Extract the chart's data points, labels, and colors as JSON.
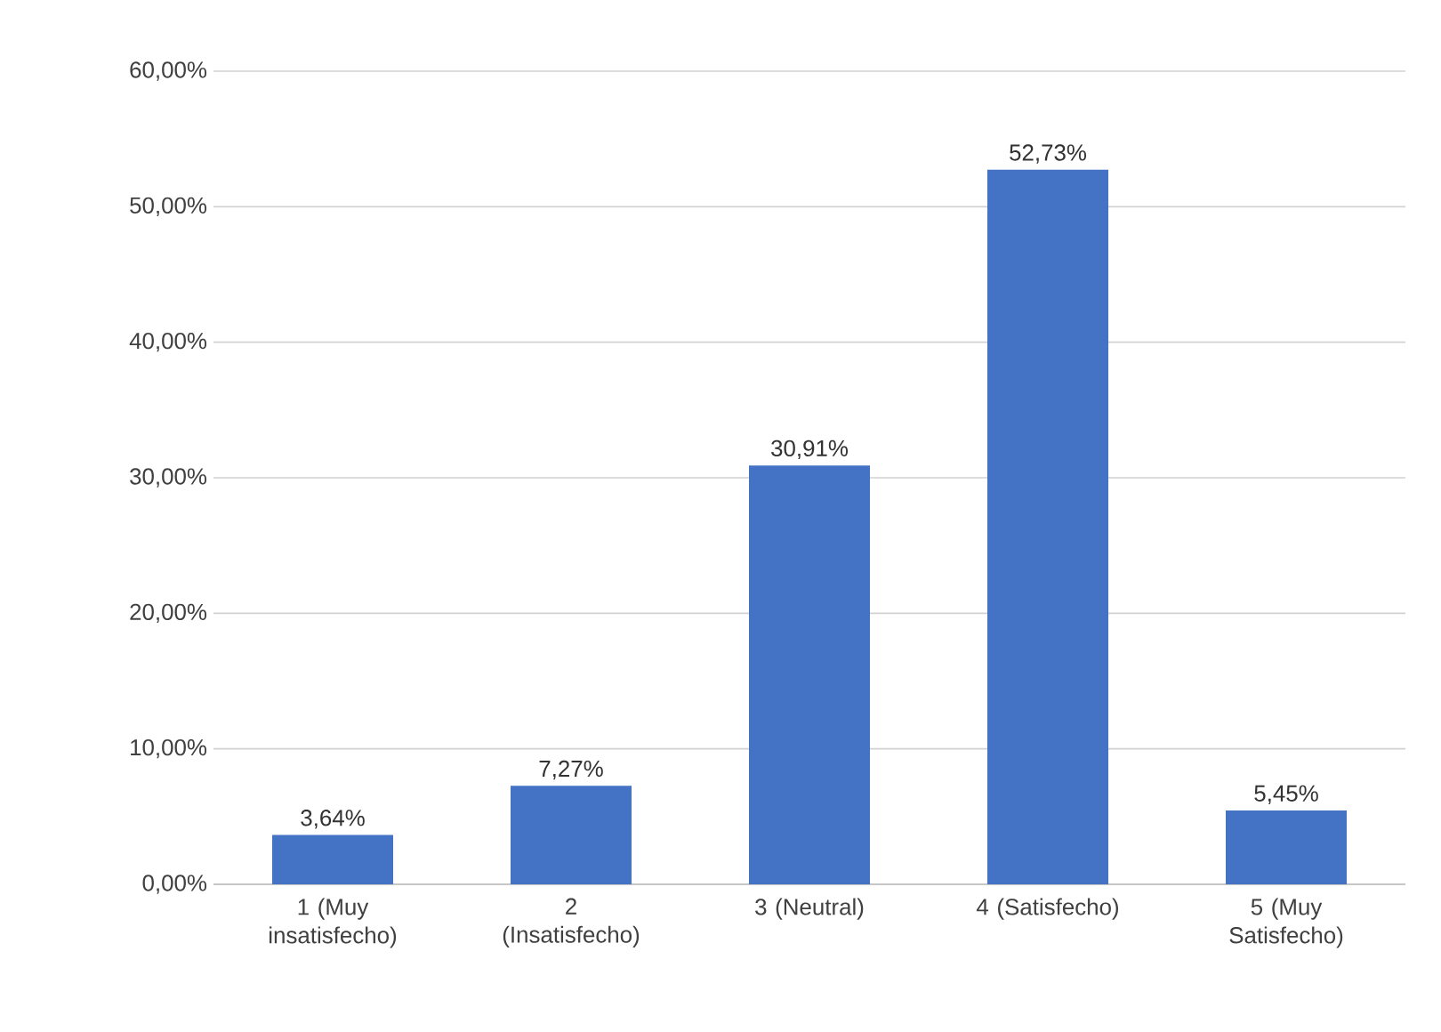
{
  "chart_data": {
    "type": "bar",
    "categories": [
      "1 (Muy insatisfecho)",
      "2 (Insatisfecho)",
      "3 (Neutral)",
      "4 (Satisfecho)",
      "5 (Muy Satisfecho)"
    ],
    "values": [
      3.64,
      7.27,
      30.91,
      52.73,
      5.45
    ],
    "value_labels": [
      "3,64%",
      "7,27%",
      "30,91%",
      "52,73%",
      "5,45%"
    ],
    "color": "#4472c4",
    "ylim": [
      0,
      60
    ],
    "yticks": [
      {
        "value": 0,
        "label": "0,00%"
      },
      {
        "value": 10,
        "label": "10,00%"
      },
      {
        "value": 20,
        "label": "20,00%"
      },
      {
        "value": 30,
        "label": "30,00%"
      },
      {
        "value": 40,
        "label": "40,00%"
      },
      {
        "value": 50,
        "label": "50,00%"
      },
      {
        "value": 60,
        "label": "60,00%"
      }
    ],
    "grid": "y"
  }
}
